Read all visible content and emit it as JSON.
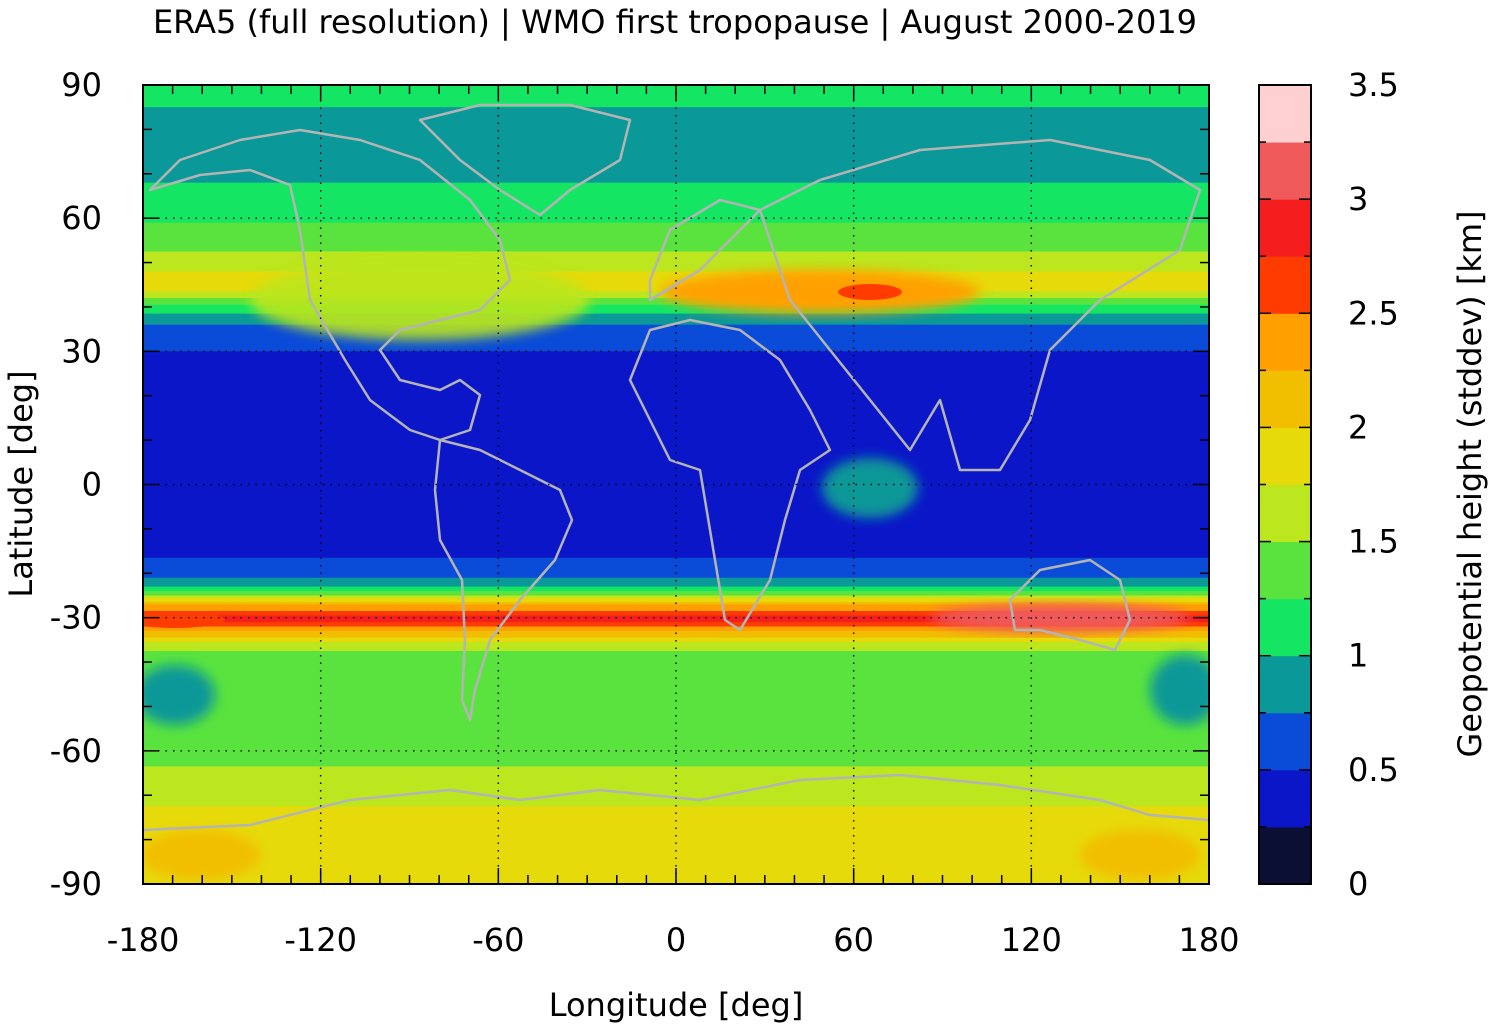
{
  "chart_data": {
    "type": "heatmap",
    "title": "ERA5 (full resolution) | WMO first tropopause | August 2000-2019",
    "xlabel": "Longitude [deg]",
    "ylabel": "Latitude [deg]",
    "colorbar_label": "Geopotential height (stddev) [km]",
    "xlim": [
      -180,
      180
    ],
    "ylim": [
      -90,
      90
    ],
    "xticks": [
      "-180",
      "-120",
      "-60",
      "0",
      "60",
      "120",
      "180"
    ],
    "yticks": [
      "90",
      "60",
      "30",
      "0",
      "-30",
      "-60",
      "-90"
    ],
    "grid": true,
    "colorbar": {
      "range": [
        0,
        3.5
      ],
      "tick_labels": [
        "0",
        "0.5",
        "1",
        "1.5",
        "2",
        "2.5",
        "3",
        "3.5"
      ],
      "levels": [
        0,
        0.25,
        0.5,
        0.75,
        1.0,
        1.25,
        1.5,
        1.75,
        2.0,
        2.25,
        2.5,
        2.75,
        3.0,
        3.25,
        3.5
      ],
      "colors": [
        "#0b0f33",
        "#0a16c8",
        "#0a4bd8",
        "#0a9898",
        "#14e664",
        "#5ae33e",
        "#bce61e",
        "#e6da0a",
        "#f2be00",
        "#ffa000",
        "#ff3c00",
        "#f51e1e",
        "#f05a5a",
        "#ffd0d0"
      ]
    },
    "latitude_profile": {
      "lat": [
        90,
        80,
        70,
        60,
        50,
        45,
        40,
        35,
        30,
        20,
        10,
        0,
        -10,
        -20,
        -24,
        -27,
        -30,
        -33,
        -36,
        -40,
        -50,
        -60,
        -70,
        -80,
        -90
      ],
      "stddev_km": [
        1.1,
        0.9,
        0.95,
        1.2,
        1.6,
        2.0,
        1.2,
        0.6,
        0.5,
        0.4,
        0.35,
        0.35,
        0.4,
        0.55,
        1.2,
        2.2,
        2.9,
        2.3,
        1.6,
        1.3,
        1.3,
        1.4,
        1.7,
        1.9,
        1.9
      ]
    }
  }
}
